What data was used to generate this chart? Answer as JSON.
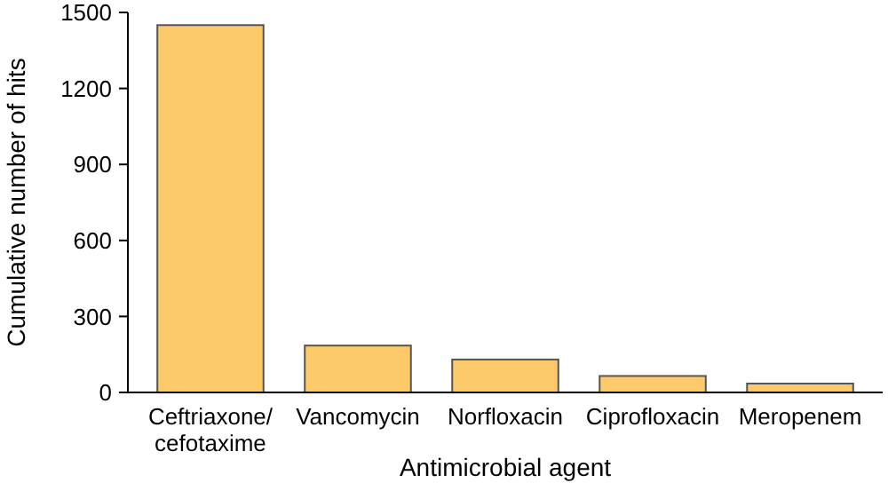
{
  "chart_data": {
    "type": "bar",
    "xlabel": "Antimicrobial agent",
    "ylabel": "Cumulative number of hits",
    "categories": [
      "Ceftriaxone/\ncefotaxime",
      "Vancomycin",
      "Norfloxacin",
      "Ciprofloxacin",
      "Meropenem"
    ],
    "values": [
      1450,
      185,
      130,
      65,
      35
    ],
    "color": "#fdca6a",
    "ylim": [
      0,
      1500
    ],
    "yticks": [
      0,
      300,
      600,
      900,
      1200,
      1500
    ],
    "grid": false
  }
}
